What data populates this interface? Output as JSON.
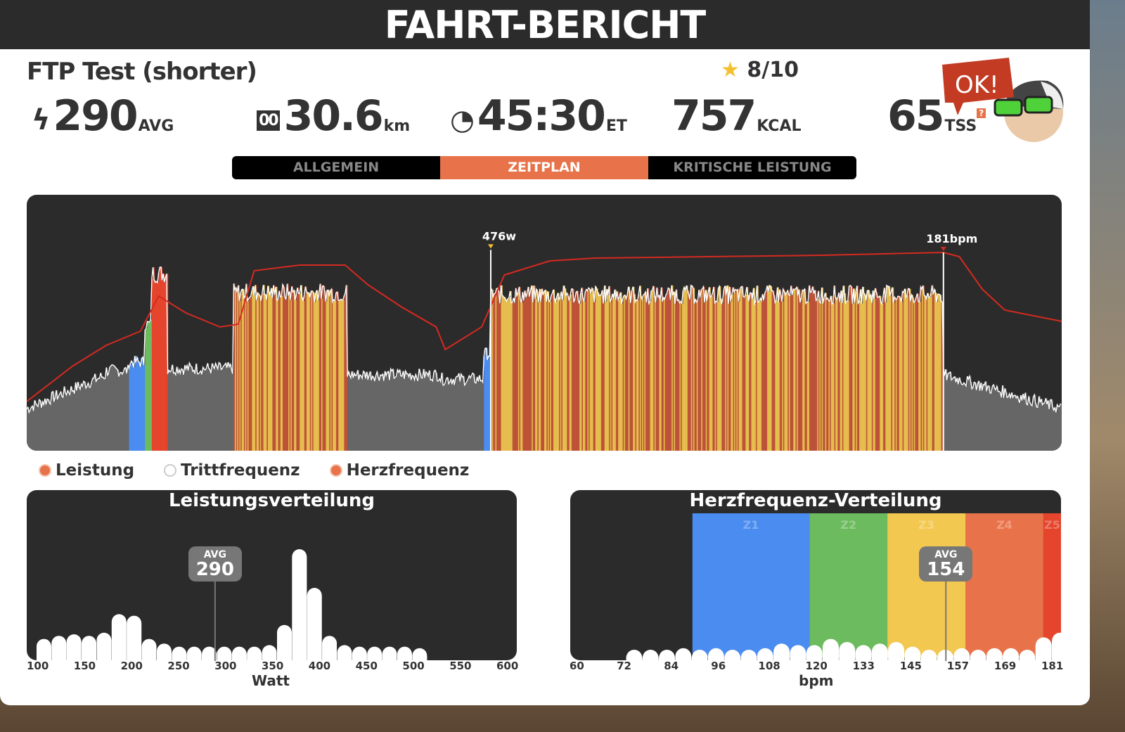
{
  "header": {
    "title": "FAHRT-BERICHT"
  },
  "workout": {
    "name": "FTP Test (shorter)",
    "rating": "8/10"
  },
  "stats": {
    "power": "290",
    "power_unit": "AVG",
    "distance": "30.6",
    "distance_unit": "km",
    "time": "45:30",
    "time_unit": "ET",
    "calories": "757",
    "calories_unit": "KCAL",
    "tss": "65",
    "tss_unit": "TSS",
    "tss_help": "?",
    "mascot_text": "OK!"
  },
  "tabs": [
    {
      "label": "ALLGEMEIN"
    },
    {
      "label": "ZEITPLAN",
      "active": true
    },
    {
      "label": "KRITISCHE LEISTUNG"
    }
  ],
  "legend": [
    {
      "label": "Leistung",
      "on": true
    },
    {
      "label": "Trittfrequenz",
      "on": false
    },
    {
      "label": "Herzfrequenz",
      "on": true
    }
  ],
  "colors": {
    "accent": "#e8734a",
    "gray": "#666666",
    "z1": "#4a8cf0",
    "z2": "#6cbb5e",
    "z3": "#f3c850",
    "z4": "#e8734a",
    "z5": "#e4452c",
    "hr_line": "#d42a20"
  },
  "chart_data": [
    {
      "type": "area",
      "title": "Zeitplan",
      "duration_min": 45.5,
      "power_ylim": [
        0,
        500
      ],
      "hr_ylim": [
        40,
        190
      ],
      "annotations": [
        {
          "label": "476w",
          "x_min": 20.4,
          "value": 476
        },
        {
          "label": "181bpm",
          "x_min": 40.3,
          "value": 181
        }
      ],
      "power_segments": [
        [
          0,
          3.5,
          100,
          180,
          "gray"
        ],
        [
          3.5,
          4.5,
          190,
          190,
          "gray"
        ],
        [
          4.5,
          5.2,
          210,
          210,
          "z1"
        ],
        [
          5.2,
          5.5,
          300,
          300,
          "z2"
        ],
        [
          5.5,
          6.2,
          420,
          420,
          "z5"
        ],
        [
          6.2,
          9.1,
          195,
          195,
          "gray"
        ],
        [
          9.1,
          14.1,
          375,
          375,
          "z3z4"
        ],
        [
          14.1,
          18.2,
          180,
          180,
          "gray"
        ],
        [
          18.2,
          20.1,
          170,
          170,
          "gray"
        ],
        [
          20.1,
          20.4,
          230,
          230,
          "z1"
        ],
        [
          20.4,
          40.3,
          370,
          370,
          "z3z4"
        ],
        [
          40.3,
          45.5,
          180,
          100,
          "gray"
        ]
      ],
      "hr": [
        [
          0,
          75
        ],
        [
          2,
          100
        ],
        [
          3.5,
          115
        ],
        [
          5,
          125
        ],
        [
          5.8,
          150
        ],
        [
          7,
          138
        ],
        [
          8.5,
          128
        ],
        [
          9.3,
          130
        ],
        [
          10,
          168
        ],
        [
          12,
          172
        ],
        [
          14,
          172
        ],
        [
          15,
          158
        ],
        [
          16.5,
          142
        ],
        [
          18,
          128
        ],
        [
          18.4,
          112
        ],
        [
          20,
          128
        ],
        [
          21,
          165
        ],
        [
          23,
          175
        ],
        [
          25,
          177
        ],
        [
          30,
          178
        ],
        [
          35,
          179
        ],
        [
          40.3,
          181
        ],
        [
          41,
          178
        ],
        [
          42,
          155
        ],
        [
          43,
          140
        ],
        [
          45.5,
          132
        ]
      ]
    },
    {
      "type": "bar",
      "title": "Leistungsverteilung",
      "xlabel": "Watt",
      "ticks": [
        "100",
        "150",
        "200",
        "250",
        "300",
        "350",
        "400",
        "450",
        "500",
        "550",
        "600"
      ],
      "xlim": [
        100,
        600
      ],
      "avg_label": "AVG",
      "avg": 290,
      "bins_start": 100,
      "bin_width": 16,
      "values": [
        12,
        14,
        15,
        14,
        16,
        28,
        27,
        12,
        9,
        7,
        7,
        7,
        7,
        7,
        7,
        8,
        21,
        70,
        45,
        14,
        8,
        7,
        7,
        7,
        7,
        6
      ]
    },
    {
      "type": "bar",
      "title": "Herzfrequenz-Verteilung",
      "xlabel": "bpm",
      "ticks": [
        "60",
        "72",
        "84",
        "96",
        "108",
        "120",
        "133",
        "145",
        "157",
        "169",
        "181"
      ],
      "xlim": [
        60,
        181
      ],
      "avg_label": "AVG",
      "avg": 154,
      "zones": [
        {
          "label": "Z1",
          "from": 89,
          "to": 119,
          "color": "#4a8cf0"
        },
        {
          "label": "Z2",
          "from": 119,
          "to": 139,
          "color": "#6cbb5e"
        },
        {
          "label": "Z3",
          "from": 139,
          "to": 159,
          "color": "#f3c850"
        },
        {
          "label": "Z4",
          "from": 159,
          "to": 179,
          "color": "#e8734a"
        },
        {
          "label": "Z5",
          "from": 179,
          "to": 186,
          "color": "#e4452c"
        }
      ],
      "bins_start": 72,
      "bin_width": 4.2,
      "values": [
        5,
        5,
        5,
        6,
        5,
        6,
        5,
        5,
        6,
        9,
        8,
        8,
        12,
        10,
        8,
        9,
        10,
        7,
        5,
        5,
        6,
        5,
        6,
        6,
        5,
        13,
        16,
        28,
        44,
        58
      ]
    }
  ]
}
